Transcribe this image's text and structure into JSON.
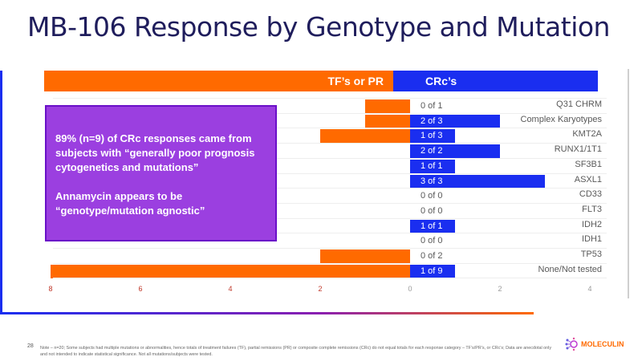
{
  "title": "MB-106 Response by Genotype and Mutation",
  "chart_data": {
    "type": "bar",
    "orientation": "horizontal-diverging",
    "header_left": "TF’s or PR",
    "header_right": "CRc’s",
    "categories": [
      "Q31 CHRM",
      "Complex Karyotypes",
      "KMT2A",
      "RUNX1/1T1",
      "SF3B1",
      "ASXL1",
      "CD33",
      "FLT3",
      "IDH2",
      "IDH1",
      "TP53",
      "None/Not tested"
    ],
    "fractions": [
      "0 of 1",
      "2 of 3",
      "1 of 3",
      "2 of 2",
      "1 of 1",
      "3 of 3",
      "0 of 0",
      "0 of 0",
      "1 of 1",
      "0 of 0",
      "0 of 2",
      "1 of 9"
    ],
    "series": [
      {
        "name": "TF’s or PR",
        "color": "#ff6a00",
        "values": [
          1,
          1,
          2,
          0,
          0,
          0,
          0,
          0,
          0,
          0,
          2,
          8
        ]
      },
      {
        "name": "CRc’s",
        "color": "#1a2ef0",
        "values": [
          0,
          2,
          1,
          2,
          1,
          3,
          0,
          0,
          1,
          0,
          0,
          1
        ]
      }
    ],
    "xlim": [
      -8,
      4
    ],
    "tick_labels": [
      "8",
      "6",
      "4",
      "2",
      "0",
      "2",
      "4"
    ],
    "tick_values": [
      -8,
      -6,
      -4,
      -2,
      0,
      2,
      4
    ],
    "grid": false
  },
  "callout": {
    "line1": "89% (n=9) of CRc responses came from subjects with “generally poor prognosis cytogenetics and mutations”",
    "line2": "Annamycin appears to be “genotype/mutation agnostic”",
    "color": "#9b3fe0"
  },
  "footer": {
    "page_number": "28",
    "note": "Note – n=20; Some subjects had multiple mutations or abnormalities, hence totals of treatment failures (TF), partial remissions (PR) or composite complete remissions (CRc) do not equal totals for each response category – TF’s/PR’s, or CRc’s; Data are anecdotal only and not intended to indicate statistical significance. Not all mutations/subjects were tested.",
    "logo": "MOLECULIN"
  }
}
